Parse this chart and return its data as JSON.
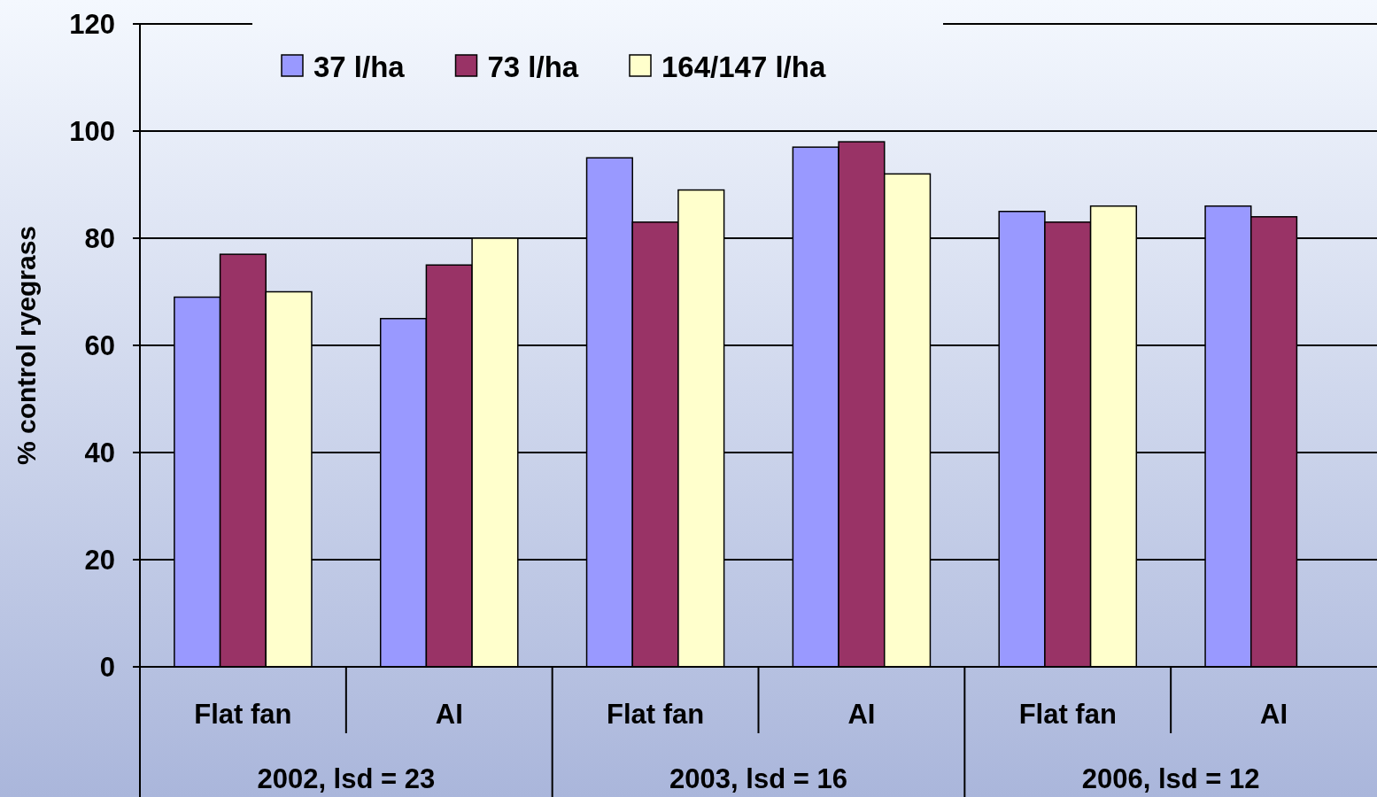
{
  "chart_data": {
    "type": "bar",
    "ylabel": "% control ryegrass",
    "categories": [
      "Flat fan",
      "AI",
      "Flat fan",
      "AI",
      "Flat fan",
      "AI"
    ],
    "series": [
      {
        "name": "37 l/ha",
        "color": "#9999ff",
        "values": [
          69,
          65,
          95,
          97,
          85,
          86
        ]
      },
      {
        "name": "73 l/ha",
        "color": "#993366",
        "values": [
          77,
          75,
          83,
          98,
          83,
          84
        ]
      },
      {
        "name": "164/147 l/ha",
        "color": "#ffffcc",
        "values": [
          70,
          80,
          89,
          92,
          86,
          null
        ]
      }
    ],
    "annotations": [
      "2002, lsd = 23",
      "2003, lsd = 16",
      "2006, lsd = 12"
    ],
    "ylim": [
      0,
      120
    ],
    "yticks": [
      0,
      20,
      40,
      60,
      80,
      100,
      120
    ],
    "grid": "y",
    "legend": "top"
  }
}
